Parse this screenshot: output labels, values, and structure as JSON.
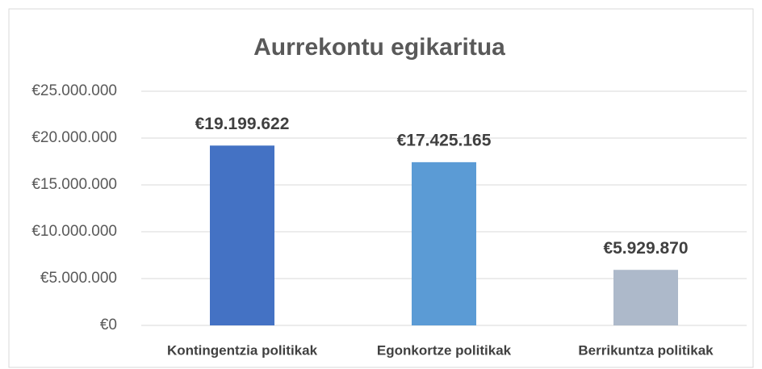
{
  "chart_data": {
    "type": "bar",
    "title": "Aurrekontu egikaritua",
    "categories": [
      "Kontingentzia politikak",
      "Egonkortze politikak",
      "Berrikuntza politikak"
    ],
    "values": [
      19199622,
      17425165,
      5929870
    ],
    "value_labels": [
      "€19.199.622",
      "€17.425.165",
      "€5.929.870"
    ],
    "colors": [
      "#4472c4",
      "#5b9bd5",
      "#adb9ca"
    ],
    "ylim": [
      0,
      25000000
    ],
    "yticks": [
      {
        "value": 0,
        "label": "€0"
      },
      {
        "value": 5000000,
        "label": "€5.000.000"
      },
      {
        "value": 10000000,
        "label": "€10.000.000"
      },
      {
        "value": 15000000,
        "label": "€15.000.000"
      },
      {
        "value": 20000000,
        "label": "€20.000.000"
      },
      {
        "value": 25000000,
        "label": "€25.000.000"
      }
    ],
    "grid": true
  }
}
